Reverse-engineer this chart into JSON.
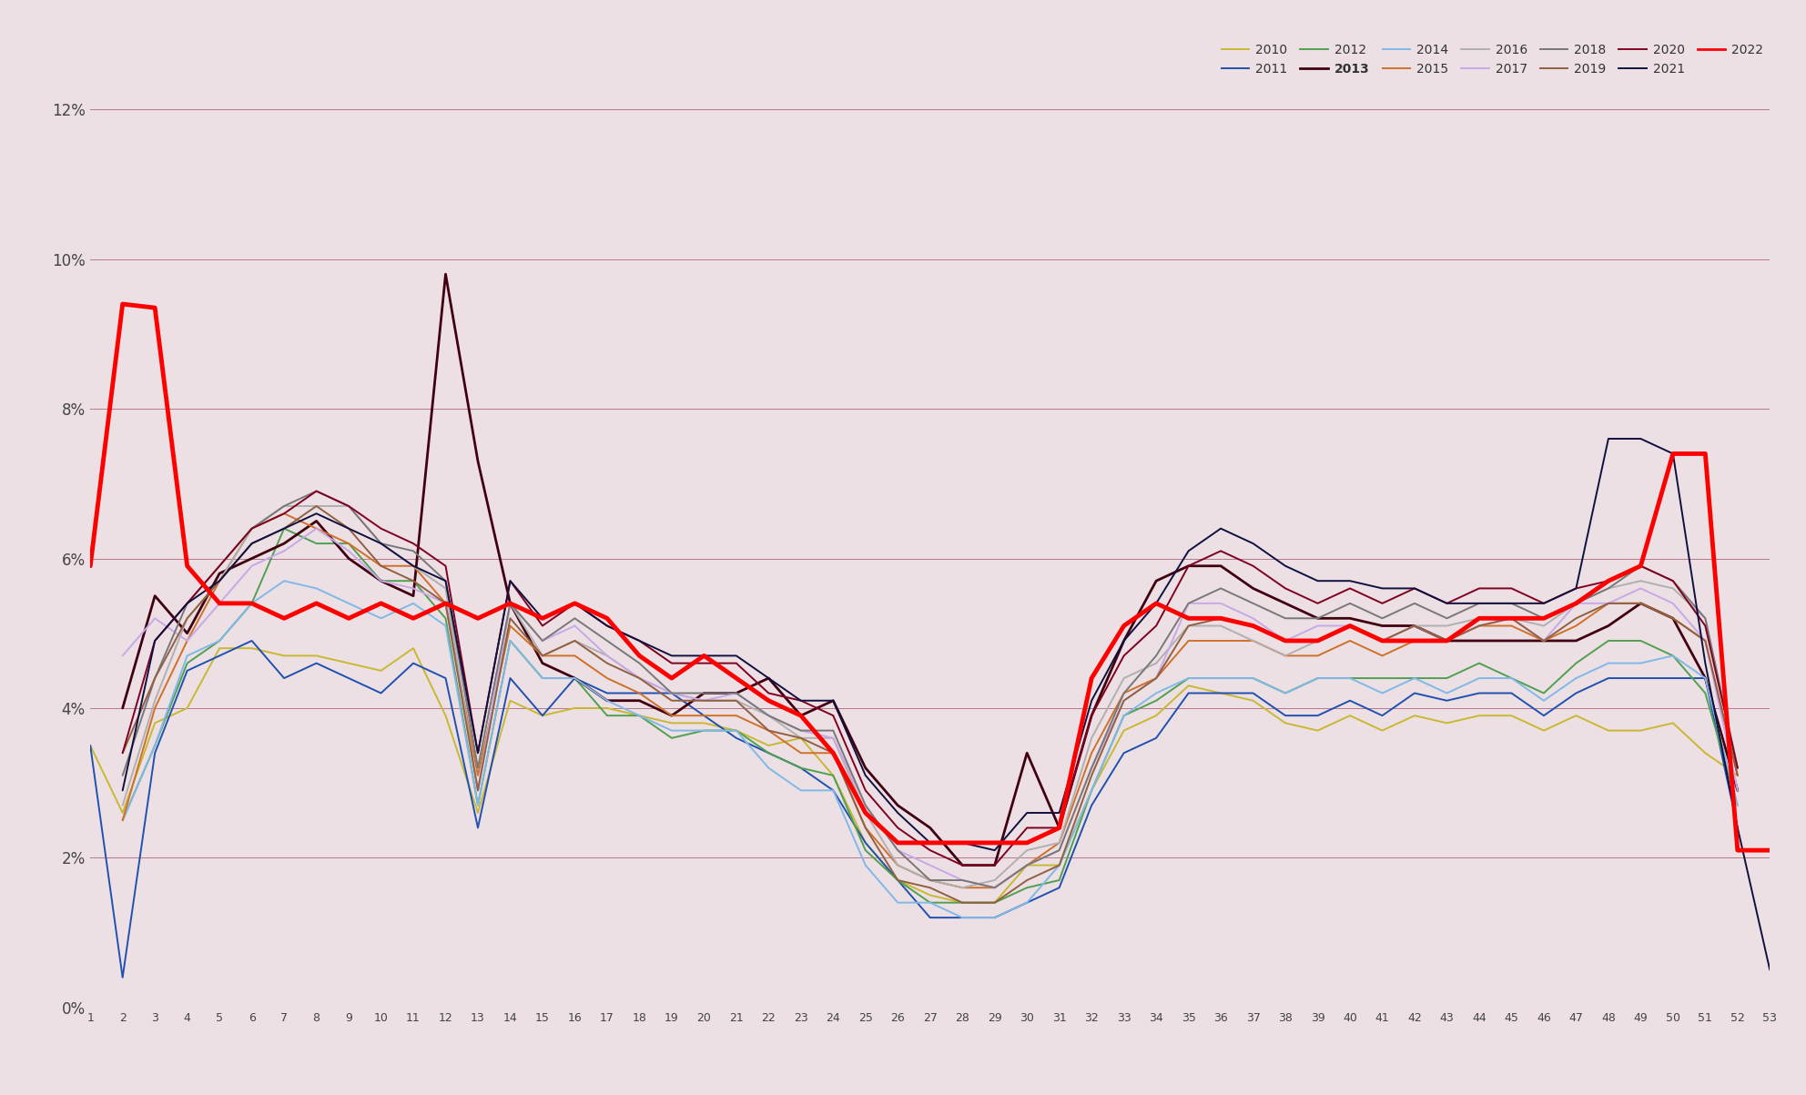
{
  "background_color": "#ece0e4",
  "grid_color": "#8b2040",
  "x_min": 1,
  "x_max": 53,
  "y_min": 0.0,
  "y_max": 0.12,
  "yticks": [
    0.0,
    0.02,
    0.04,
    0.06,
    0.08,
    0.1,
    0.12
  ],
  "ytick_labels": [
    "0%",
    "2%",
    "4%",
    "6%",
    "8%",
    "10%",
    "12%"
  ],
  "legend_order_row1": [
    "2010",
    "2011",
    "2012",
    "2013",
    "2014",
    "2015",
    "2016"
  ],
  "legend_order_row2": [
    "2017",
    "2018",
    "2019",
    "2020",
    "2021",
    "2022"
  ],
  "series": {
    "2010": {
      "color": "#c8b832",
      "linewidth": 1.4,
      "values": [
        3.5,
        2.6,
        3.8,
        4.0,
        4.8,
        4.8,
        4.7,
        4.7,
        4.6,
        4.5,
        4.8,
        3.9,
        2.6,
        4.1,
        3.9,
        4.0,
        4.0,
        3.9,
        3.8,
        3.8,
        3.7,
        3.5,
        3.6,
        3.1,
        2.2,
        1.7,
        1.5,
        1.4,
        1.4,
        1.9,
        1.9,
        2.9,
        3.7,
        3.9,
        4.3,
        4.2,
        4.1,
        3.8,
        3.7,
        3.9,
        3.7,
        3.9,
        3.8,
        3.9,
        3.9,
        3.7,
        3.9,
        3.7,
        3.7,
        3.8,
        3.4,
        3.1,
        null
      ]
    },
    "2011": {
      "color": "#2050b0",
      "linewidth": 1.4,
      "values": [
        3.5,
        0.4,
        3.4,
        4.5,
        4.7,
        4.9,
        4.4,
        4.6,
        4.4,
        4.2,
        4.6,
        4.4,
        2.4,
        4.4,
        3.9,
        4.4,
        4.2,
        4.2,
        4.2,
        3.9,
        3.6,
        3.4,
        3.2,
        2.9,
        2.2,
        1.7,
        1.2,
        1.2,
        1.2,
        1.4,
        1.6,
        2.7,
        3.4,
        3.6,
        4.2,
        4.2,
        4.2,
        3.9,
        3.9,
        4.1,
        3.9,
        4.2,
        4.1,
        4.2,
        4.2,
        3.9,
        4.2,
        4.4,
        4.4,
        4.4,
        4.4,
        2.4,
        null
      ]
    },
    "2012": {
      "color": "#50a050",
      "linewidth": 1.4,
      "values": [
        null,
        2.5,
        3.5,
        4.6,
        4.9,
        5.4,
        6.4,
        6.2,
        6.2,
        5.7,
        5.7,
        5.2,
        2.7,
        4.9,
        4.4,
        4.4,
        3.9,
        3.9,
        3.6,
        3.7,
        3.7,
        3.4,
        3.2,
        3.1,
        2.1,
        1.7,
        1.4,
        1.4,
        1.4,
        1.6,
        1.7,
        2.9,
        3.9,
        4.1,
        4.4,
        4.4,
        4.4,
        4.2,
        4.4,
        4.4,
        4.4,
        4.4,
        4.4,
        4.6,
        4.4,
        4.2,
        4.6,
        4.9,
        4.9,
        4.7,
        4.2,
        2.7,
        null
      ]
    },
    "2013": {
      "color": "#400010",
      "linewidth": 2.0,
      "values": [
        null,
        4.0,
        5.5,
        5.0,
        5.8,
        6.0,
        6.2,
        6.5,
        6.0,
        5.7,
        5.5,
        9.8,
        7.3,
        5.4,
        4.6,
        4.4,
        4.1,
        4.1,
        3.9,
        4.2,
        4.2,
        4.4,
        3.9,
        4.1,
        3.2,
        2.7,
        2.4,
        1.9,
        1.9,
        3.4,
        2.4,
        3.9,
        4.9,
        5.7,
        5.9,
        5.9,
        5.6,
        5.4,
        5.2,
        5.2,
        5.1,
        5.1,
        4.9,
        4.9,
        4.9,
        4.9,
        4.9,
        5.1,
        5.4,
        5.2,
        4.4,
        2.9,
        null
      ]
    },
    "2014": {
      "color": "#80b8e8",
      "linewidth": 1.4,
      "values": [
        null,
        2.5,
        3.5,
        4.7,
        4.9,
        5.4,
        5.7,
        5.6,
        5.4,
        5.2,
        5.4,
        5.1,
        2.7,
        4.9,
        4.4,
        4.4,
        4.1,
        3.9,
        3.7,
        3.7,
        3.7,
        3.2,
        2.9,
        2.9,
        1.9,
        1.4,
        1.4,
        1.2,
        1.2,
        1.4,
        1.9,
        2.9,
        3.9,
        4.2,
        4.4,
        4.4,
        4.4,
        4.2,
        4.4,
        4.4,
        4.2,
        4.4,
        4.2,
        4.4,
        4.4,
        4.1,
        4.4,
        4.6,
        4.6,
        4.7,
        4.4,
        2.7,
        null
      ]
    },
    "2015": {
      "color": "#d07028",
      "linewidth": 1.4,
      "values": [
        null,
        2.5,
        4.0,
        4.9,
        5.7,
        6.4,
        6.6,
        6.4,
        6.2,
        5.9,
        5.9,
        5.4,
        3.1,
        5.1,
        4.7,
        4.7,
        4.4,
        4.2,
        3.9,
        3.9,
        3.9,
        3.7,
        3.4,
        3.4,
        2.4,
        1.9,
        1.7,
        1.6,
        1.6,
        1.9,
        2.2,
        3.4,
        4.2,
        4.4,
        4.9,
        4.9,
        4.9,
        4.7,
        4.7,
        4.9,
        4.7,
        4.9,
        4.9,
        5.1,
        5.1,
        4.9,
        5.1,
        5.4,
        5.4,
        5.2,
        4.9,
        3.1,
        null
      ]
    },
    "2016": {
      "color": "#b0b0b0",
      "linewidth": 1.4,
      "values": [
        null,
        2.7,
        4.1,
        5.2,
        5.7,
        6.4,
        6.7,
        6.7,
        6.7,
        6.2,
        5.9,
        5.6,
        2.9,
        5.4,
        4.7,
        4.9,
        4.7,
        4.4,
        4.2,
        4.1,
        4.1,
        3.9,
        3.6,
        3.6,
        2.6,
        1.9,
        1.7,
        1.6,
        1.7,
        2.1,
        2.2,
        3.6,
        4.4,
        4.6,
        5.1,
        5.1,
        4.9,
        4.7,
        4.9,
        5.1,
        4.9,
        5.1,
        5.1,
        5.2,
        5.2,
        5.1,
        5.4,
        5.6,
        5.7,
        5.6,
        5.2,
        3.2,
        null
      ]
    },
    "2017": {
      "color": "#c8a8e8",
      "linewidth": 1.4,
      "values": [
        null,
        4.7,
        5.2,
        4.9,
        5.4,
        5.9,
        6.1,
        6.4,
        6.1,
        5.7,
        5.6,
        5.4,
        2.9,
        5.4,
        4.9,
        5.1,
        4.7,
        4.4,
        4.2,
        4.1,
        4.2,
        3.9,
        3.7,
        3.6,
        2.7,
        2.1,
        1.9,
        1.7,
        1.6,
        1.9,
        2.1,
        3.2,
        4.1,
        4.4,
        5.4,
        5.4,
        5.2,
        4.9,
        5.1,
        5.1,
        4.9,
        5.1,
        4.9,
        5.1,
        5.2,
        4.9,
        5.4,
        5.4,
        5.6,
        5.4,
        4.9,
        2.9,
        null
      ]
    },
    "2018": {
      "color": "#787878",
      "linewidth": 1.4,
      "values": [
        null,
        3.1,
        4.4,
        5.4,
        5.9,
        6.4,
        6.7,
        6.9,
        6.7,
        6.2,
        6.1,
        5.7,
        3.2,
        5.4,
        4.9,
        5.2,
        4.9,
        4.6,
        4.2,
        4.2,
        4.2,
        3.9,
        3.7,
        3.7,
        2.7,
        2.1,
        1.7,
        1.7,
        1.6,
        1.9,
        2.1,
        3.2,
        4.2,
        4.7,
        5.4,
        5.6,
        5.4,
        5.2,
        5.2,
        5.4,
        5.2,
        5.4,
        5.2,
        5.4,
        5.4,
        5.2,
        5.4,
        5.6,
        5.9,
        5.7,
        5.2,
        3.2,
        null
      ]
    },
    "2019": {
      "color": "#906040",
      "linewidth": 1.4,
      "values": [
        null,
        3.4,
        4.4,
        5.2,
        5.7,
        6.2,
        6.4,
        6.7,
        6.4,
        5.9,
        5.7,
        5.4,
        2.9,
        5.2,
        4.7,
        4.9,
        4.6,
        4.4,
        4.1,
        4.1,
        4.1,
        3.7,
        3.6,
        3.4,
        2.4,
        1.7,
        1.6,
        1.4,
        1.4,
        1.7,
        1.9,
        3.1,
        4.1,
        4.4,
        5.1,
        5.2,
        5.1,
        4.9,
        4.9,
        5.1,
        4.9,
        5.1,
        4.9,
        5.1,
        5.2,
        4.9,
        5.2,
        5.4,
        5.4,
        5.2,
        4.9,
        3.1,
        null
      ]
    },
    "2020": {
      "color": "#800020",
      "linewidth": 1.4,
      "values": [
        null,
        3.4,
        4.9,
        5.4,
        5.9,
        6.4,
        6.6,
        6.9,
        6.7,
        6.4,
        6.2,
        5.9,
        3.4,
        5.7,
        5.1,
        5.4,
        5.1,
        4.9,
        4.6,
        4.6,
        4.6,
        4.2,
        4.1,
        3.9,
        2.9,
        2.4,
        2.1,
        1.9,
        1.9,
        2.4,
        2.4,
        3.9,
        4.7,
        5.1,
        5.9,
        6.1,
        5.9,
        5.6,
        5.4,
        5.6,
        5.4,
        5.6,
        5.4,
        5.6,
        5.6,
        5.4,
        5.6,
        5.7,
        5.9,
        5.7,
        5.1,
        3.2,
        null
      ]
    },
    "2021": {
      "color": "#101040",
      "linewidth": 1.4,
      "values": [
        null,
        2.9,
        4.9,
        5.4,
        5.7,
        6.2,
        6.4,
        6.6,
        6.4,
        6.2,
        5.9,
        5.7,
        3.4,
        5.7,
        5.2,
        5.4,
        5.1,
        4.9,
        4.7,
        4.7,
        4.7,
        4.4,
        4.1,
        4.1,
        3.1,
        2.6,
        2.2,
        2.2,
        2.1,
        2.6,
        2.6,
        4.1,
        4.9,
        5.4,
        6.1,
        6.4,
        6.2,
        5.9,
        5.7,
        5.7,
        5.6,
        5.6,
        5.4,
        5.4,
        5.4,
        5.4,
        5.6,
        7.6,
        7.6,
        7.4,
        4.6,
        2.4,
        0.5
      ]
    },
    "2022": {
      "color": "#ff0000",
      "linewidth": 3.5,
      "values": [
        5.9,
        9.4,
        9.35,
        5.9,
        5.4,
        5.4,
        5.2,
        5.4,
        5.2,
        5.4,
        5.2,
        5.4,
        5.2,
        5.4,
        5.2,
        5.4,
        5.2,
        4.7,
        4.4,
        4.7,
        4.4,
        4.1,
        3.9,
        3.4,
        2.6,
        2.2,
        2.2,
        2.2,
        2.2,
        2.2,
        2.4,
        4.4,
        5.1,
        5.4,
        5.2,
        5.2,
        5.1,
        4.9,
        4.9,
        5.1,
        4.9,
        4.9,
        4.9,
        5.2,
        5.2,
        5.2,
        5.4,
        5.7,
        5.9,
        7.4,
        7.4,
        2.1,
        2.1
      ]
    }
  }
}
